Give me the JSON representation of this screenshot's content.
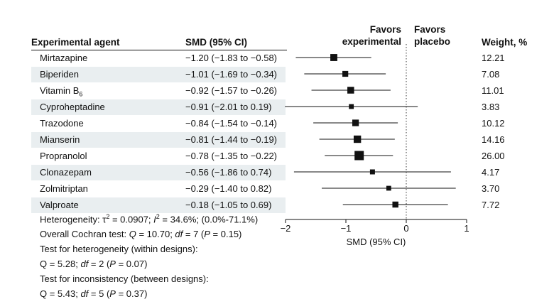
{
  "headers": {
    "agent": "Experimental agent",
    "smd": "SMD (95% CI)",
    "weight": "Weight, %",
    "favors_left": [
      "Favors",
      "experimental"
    ],
    "favors_right": [
      "Favors",
      "placebo"
    ]
  },
  "rows": [
    {
      "agent": "Mirtazapine",
      "smd_text": "−1.20 (−1.83 to −0.58)",
      "weight_text": "12.21"
    },
    {
      "agent": "Biperiden",
      "smd_text": "−1.01 (−1.69 to −0.34)",
      "weight_text": "7.08"
    },
    {
      "agent": "Vitamin B",
      "agent_sub": "6",
      "smd_text": "−0.92 (−1.57 to −0.26)",
      "weight_text": "11.01"
    },
    {
      "agent": "Cyproheptadine",
      "smd_text": "−0.91 (−2.01 to 0.19)",
      "weight_text": "3.83"
    },
    {
      "agent": "Trazodone",
      "smd_text": "−0.84 (−1.54 to −0.14)",
      "weight_text": "10.12"
    },
    {
      "agent": "Mianserin",
      "smd_text": "−0.81 (−1.44 to −0.19)",
      "weight_text": "14.16"
    },
    {
      "agent": "Propranolol",
      "smd_text": "−0.78 (−1.35 to −0.22)",
      "weight_text": "26.00"
    },
    {
      "agent": "Clonazepam",
      "smd_text": "−0.56 (−1.86 to 0.74)",
      "weight_text": "4.17"
    },
    {
      "agent": "Zolmitriptan",
      "smd_text": "−0.29 (−1.40 to 0.82)",
      "weight_text": "3.70"
    },
    {
      "agent": "Valproate",
      "smd_text": "−0.18 (−1.05 to 0.69)",
      "weight_text": "7.72"
    }
  ],
  "notes": {
    "heterogeneity_prefix": "Heterogeneity: ",
    "tau": "τ",
    "tau_sup": "2",
    "tau_val": " = 0.0907; ",
    "i": "I",
    "i_sup": "2",
    "i_val": " = 34.6%; (0.0%-71.1%)",
    "cochran_prefix": "Overall Cochran test: ",
    "cochran_q": "Q",
    "cochran_mid": " = 10.70; ",
    "cochran_df": "df",
    "cochran_rest": " = 7 (",
    "cochran_p": "P",
    "cochran_end": " = 0.15)",
    "het_within": "Test for heterogeneity (within designs):",
    "het_within_q": "Q = 5.28; ",
    "het_within_df": "df",
    "het_within_rest": " = 2 (",
    "het_within_p": "P",
    "het_within_end": " = 0.07)",
    "inconsistency": "Test for inconsistency (between designs):",
    "incons_q": "Q = 5.43; ",
    "incons_df": "df",
    "incons_rest": " = 5 (",
    "incons_p": "P",
    "incons_end": " = 0.37)"
  },
  "chart_data": {
    "type": "forest",
    "xlabel": "SMD (95% CI)",
    "xlim": [
      -2,
      1
    ],
    "xticks": [
      -2,
      -1,
      0,
      1
    ],
    "xtick_labels": [
      "−2",
      "−1",
      "0",
      "1"
    ],
    "reference_line": 0,
    "reference_line_style": "dotted",
    "left_label": "Favors experimental",
    "right_label": "Favors placebo",
    "series": [
      {
        "name": "Mirtazapine",
        "smd": -1.2,
        "lower": -1.83,
        "upper": -0.58,
        "weight": 12.21
      },
      {
        "name": "Biperiden",
        "smd": -1.01,
        "lower": -1.69,
        "upper": -0.34,
        "weight": 7.08
      },
      {
        "name": "Vitamin B6",
        "smd": -0.92,
        "lower": -1.57,
        "upper": -0.26,
        "weight": 11.01
      },
      {
        "name": "Cyproheptadine",
        "smd": -0.91,
        "lower": -2.01,
        "upper": 0.19,
        "weight": 3.83
      },
      {
        "name": "Trazodone",
        "smd": -0.84,
        "lower": -1.54,
        "upper": -0.14,
        "weight": 10.12
      },
      {
        "name": "Mianserin",
        "smd": -0.81,
        "lower": -1.44,
        "upper": -0.19,
        "weight": 14.16
      },
      {
        "name": "Propranolol",
        "smd": -0.78,
        "lower": -1.35,
        "upper": -0.22,
        "weight": 26.0
      },
      {
        "name": "Clonazepam",
        "smd": -0.56,
        "lower": -1.86,
        "upper": 0.74,
        "weight": 4.17
      },
      {
        "name": "Zolmitriptan",
        "smd": -0.29,
        "lower": -1.4,
        "upper": 0.82,
        "weight": 3.7
      },
      {
        "name": "Valproate",
        "smd": -0.18,
        "lower": -1.05,
        "upper": 0.69,
        "weight": 7.72
      }
    ],
    "colors": {
      "marker": "#111111",
      "line": "#111111",
      "shade": "#e9eef0"
    }
  }
}
